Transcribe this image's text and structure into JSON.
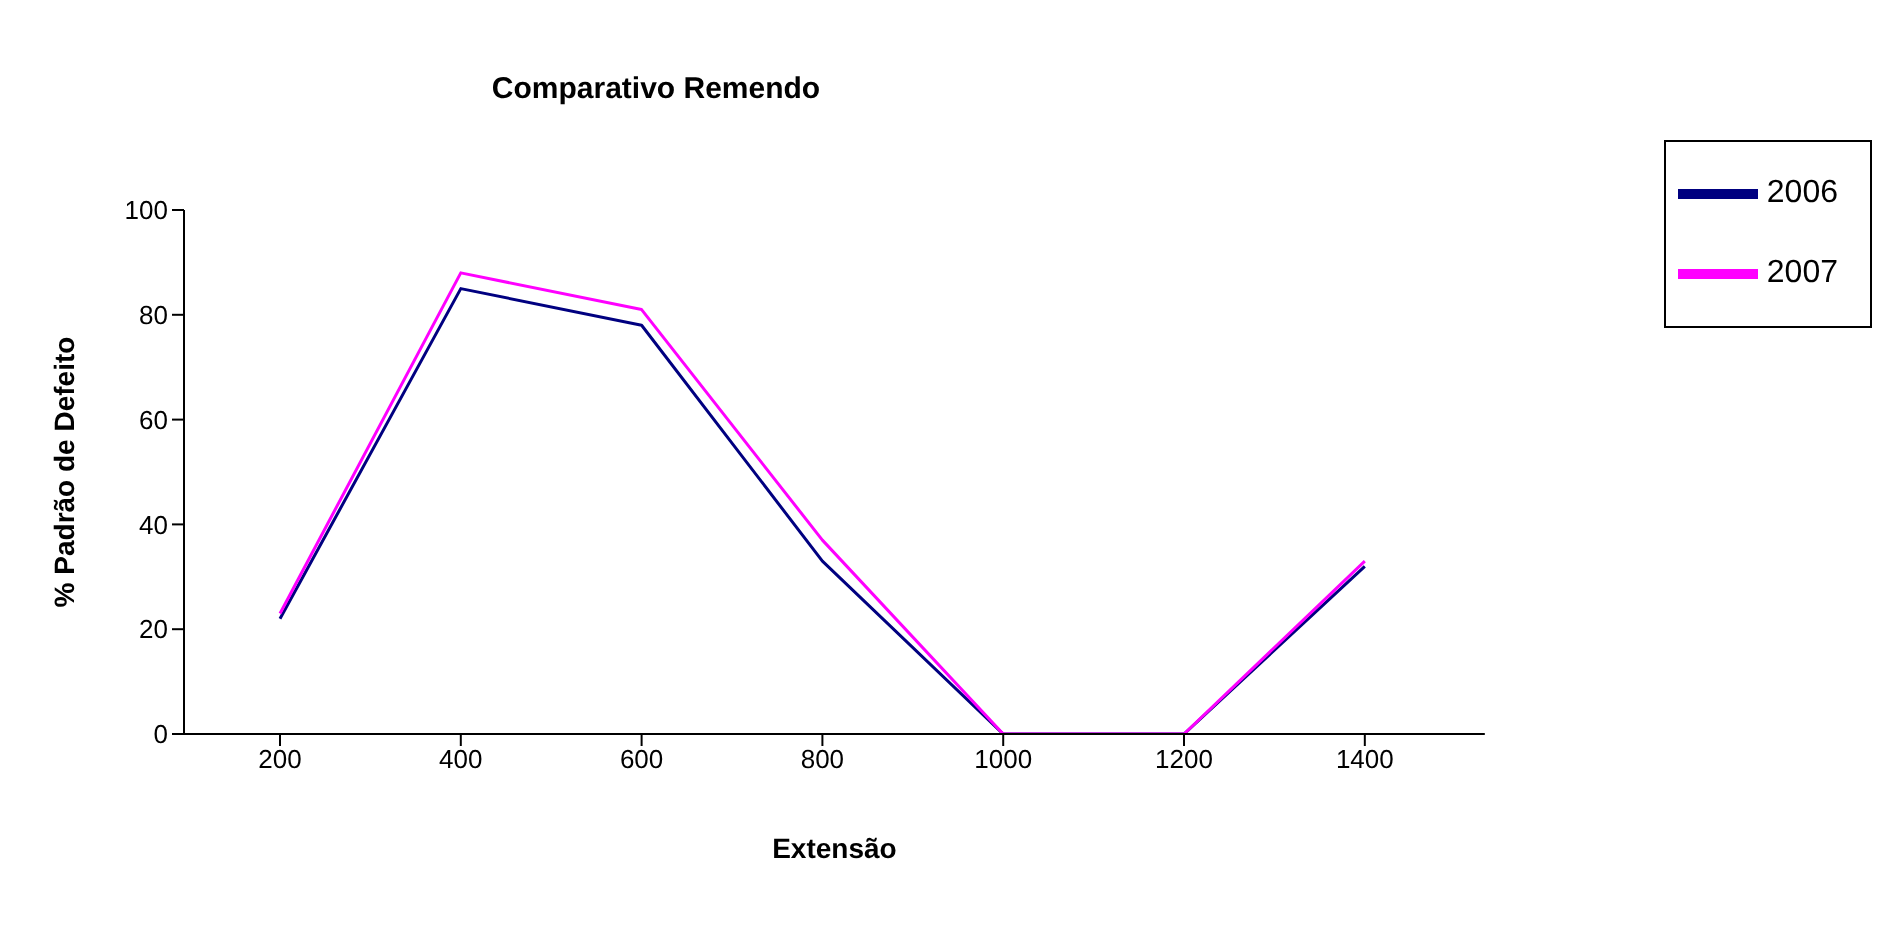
{
  "chart_data": {
    "type": "line",
    "title": "Comparativo Remendo",
    "xlabel": "Extensão",
    "ylabel": "% Padrão de Defeito",
    "categories": [
      "200",
      "400",
      "600",
      "800",
      "1000",
      "1200",
      "1400"
    ],
    "series": [
      {
        "name": "2006",
        "color": "#000080",
        "values": [
          22,
          85,
          78,
          33,
          0,
          0,
          32
        ]
      },
      {
        "name": "2007",
        "color": "#ff00ff",
        "values": [
          23,
          88,
          81,
          37,
          0,
          0,
          33
        ]
      }
    ],
    "ylim": [
      0,
      100
    ],
    "yticks": [
      0,
      20,
      40,
      60,
      80,
      100
    ],
    "grid": false,
    "legend": "top right",
    "marker": "none",
    "line_style": "solid"
  }
}
